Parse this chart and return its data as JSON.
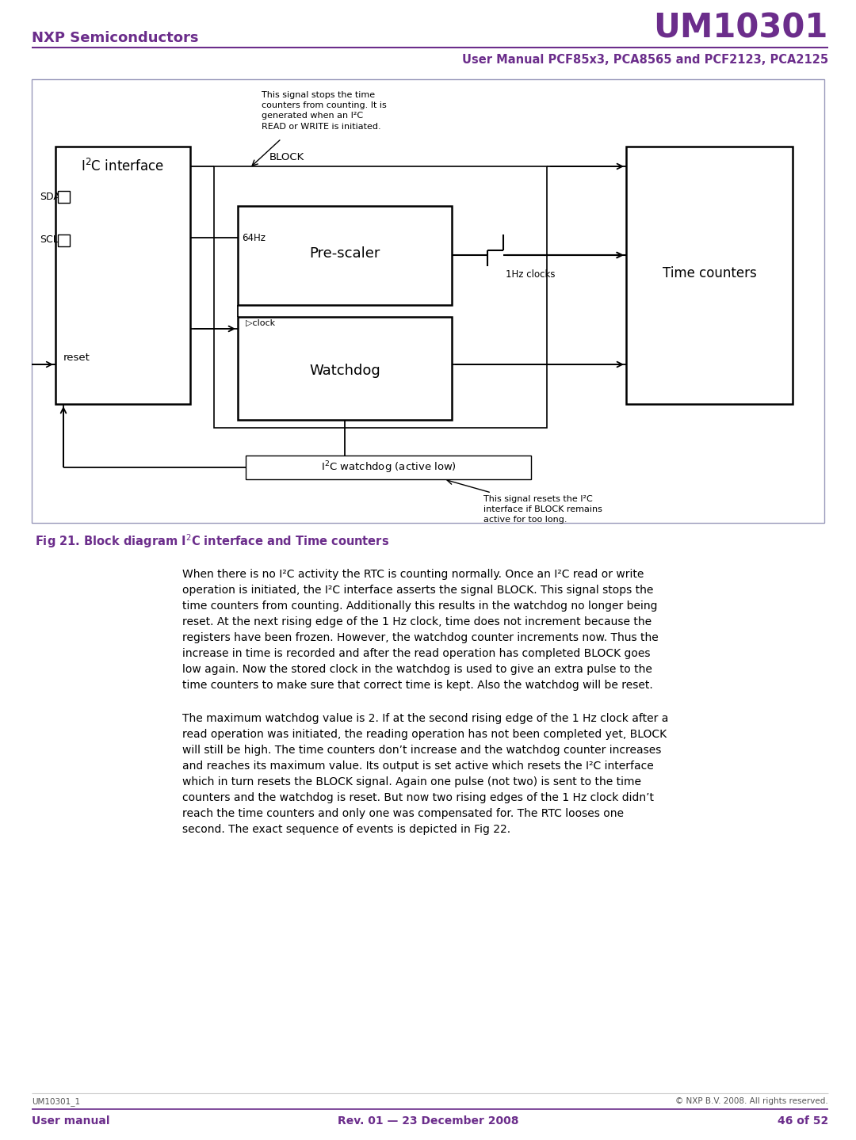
{
  "page_width": 10.8,
  "page_height": 14.39,
  "bg_color": "#ffffff",
  "purple_color": "#6b2d8b",
  "header_left": "NXP Semiconductors",
  "header_right": "UM10301",
  "header_subtitle": "User Manual PCF85x3, PCA8565 and PCF2123, PCA2125",
  "footer_left": "UM10301_1",
  "footer_copyright": "© NXP B.V. 2008. All rights reserved.",
  "footer_bottom_left": "User manual",
  "footer_bottom_center": "Rev. 01 — 23 December 2008",
  "footer_bottom_right": "46 of 52",
  "fig_caption": "Fig 21. Block diagram I²C interface and Time counters",
  "para1_line1": "When there is no I²C activity the RTC is counting normally. Once an I²C read or write",
  "para1_line2": "operation is initiated, the I²C interface asserts the signal BLOCK. This signal stops the",
  "para1_line3": "time counters from counting. Additionally this results in the watchdog no longer being",
  "para1_line4": "reset. At the next rising edge of the 1 Hz clock, time does not increment because the",
  "para1_line5": "registers have been frozen. However, the watchdog counter increments now. Thus the",
  "para1_line6": "increase in time is recorded and after the read operation has completed BLOCK goes",
  "para1_line7": "low again. Now the stored clock in the watchdog is used to give an extra pulse to the",
  "para1_line8": "time counters to make sure that correct time is kept. Also the watchdog will be reset.",
  "para2_line1": "The maximum watchdog value is 2. If at the second rising edge of the 1 Hz clock after a",
  "para2_line2": "read operation was initiated, the reading operation has not been completed yet, BLOCK",
  "para2_line3": "will still be high. The time counters don’t increase and the watchdog counter increases",
  "para2_line4": "and reaches its maximum value. Its output is set active which resets the I²C interface",
  "para2_line5": "which in turn resets the BLOCK signal. Again one pulse (not two) is sent to the time",
  "para2_line6": "counters and the watchdog is reset. But now two rising edges of the 1 Hz clock didn’t",
  "para2_line7": "reach the time counters and only one was compensated for. The RTC looses one",
  "para2_line8": "second. The exact sequence of events is depicted in Fig 22."
}
